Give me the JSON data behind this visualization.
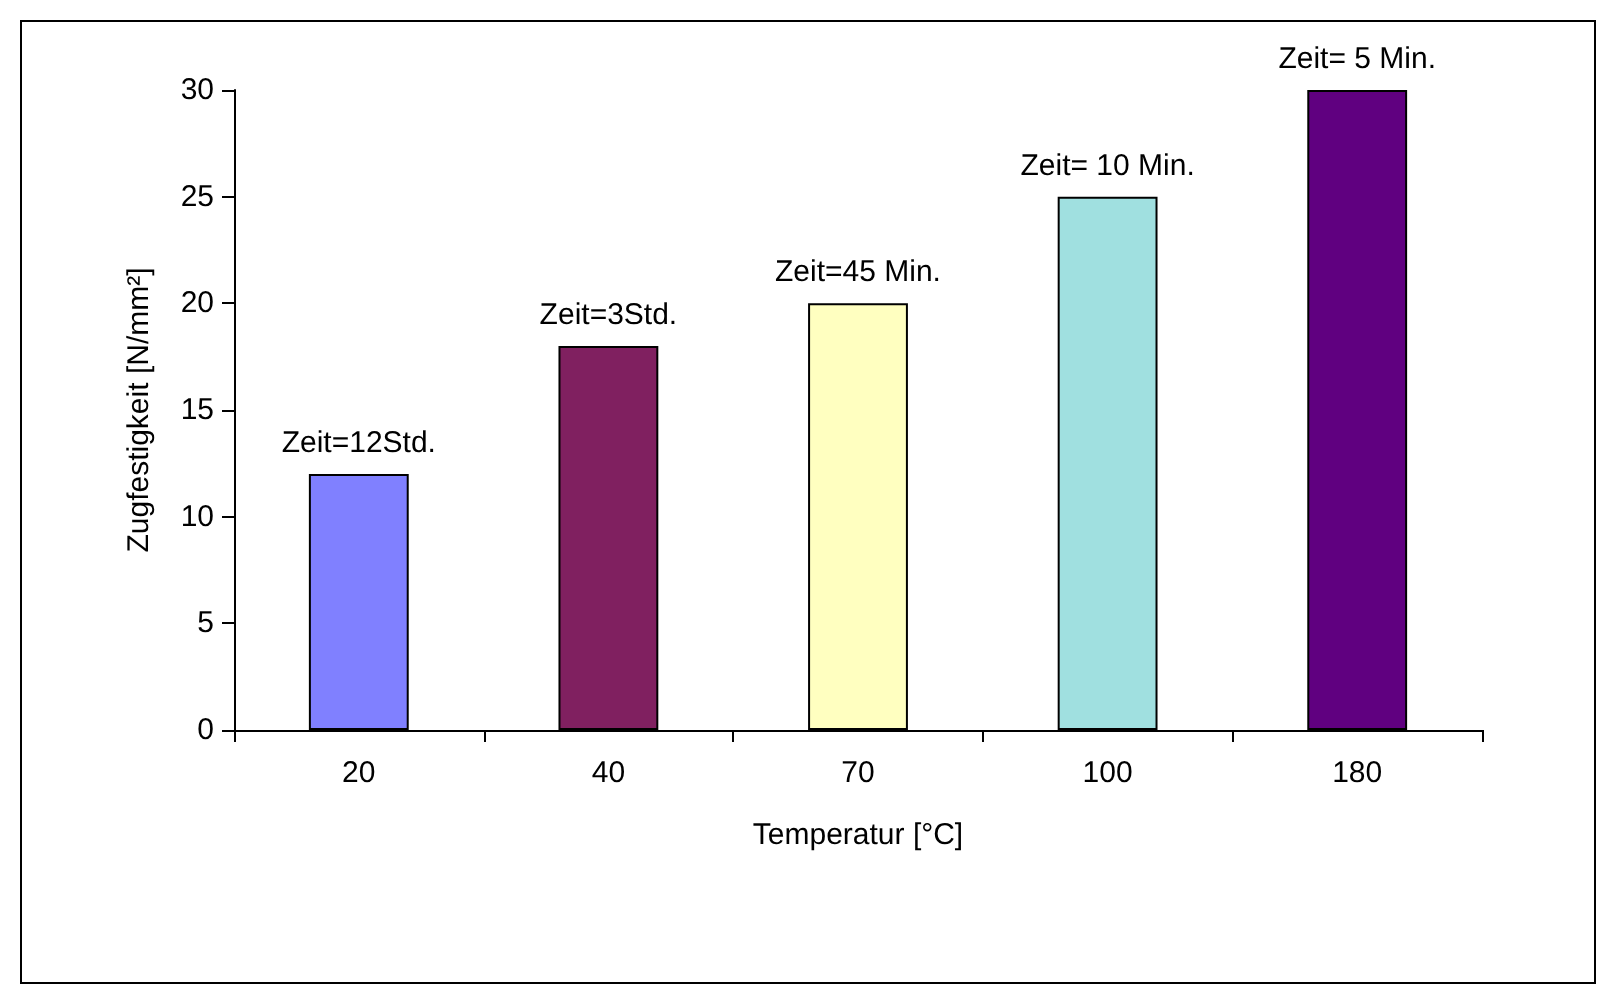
{
  "chart_data": {
    "type": "bar",
    "xlabel": "Temperatur [°C]",
    "ylabel": "Zugfestigkeit [N/mm²]",
    "categories": [
      "20",
      "40",
      "70",
      "100",
      "180"
    ],
    "values": [
      12,
      18,
      20,
      25,
      30
    ],
    "colors": [
      "#8080ff",
      "#802060",
      "#ffffc0",
      "#a0e0e0",
      "#600080"
    ],
    "ylim": [
      0,
      30
    ],
    "yticks": [
      0,
      5,
      10,
      15,
      20,
      25,
      30
    ],
    "grid": false,
    "annotations": [
      {
        "text": "Zeit=12Std.",
        "x": "20",
        "y": 12
      },
      {
        "text": "Zeit=3Std.",
        "x": "40",
        "y": 18
      },
      {
        "text": "Zeit=45 Min.",
        "x": "70",
        "y": 20
      },
      {
        "text": "Zeit= 10 Min.",
        "x": "100",
        "y": 25
      },
      {
        "text": "Zeit= 5 Min.",
        "x": "180",
        "y": 30
      }
    ]
  }
}
